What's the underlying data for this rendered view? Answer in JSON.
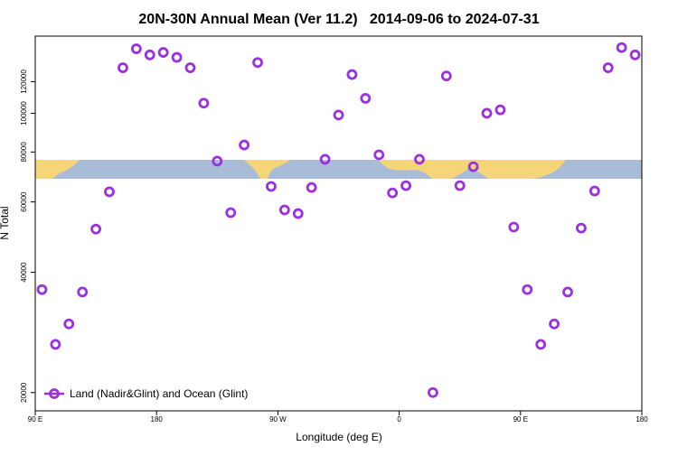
{
  "chart_data": {
    "type": "scatter",
    "title": "20N-30N Annual Mean (Ver 11.2)   2014-09-06 to 2024-07-31",
    "x_label": "Longitude (deg E)",
    "y_label": "N Total",
    "xlim": [
      90,
      540
    ],
    "ylim": [
      18000,
      156000
    ],
    "y_log": true,
    "xticks": [
      {
        "value": 90,
        "label": "90 E"
      },
      180,
      {
        "value": 270,
        "label": "90 W"
      },
      {
        "value": 360,
        "label": "0"
      },
      {
        "value": 450,
        "label": "90 E"
      },
      {
        "value": 540,
        "label": "180"
      }
    ],
    "yticks": [
      20000,
      40000,
      60000,
      80000,
      100000,
      120000
    ],
    "legend_position": "lower left",
    "x": [
      95,
      105,
      115,
      125,
      135,
      145,
      155,
      165,
      175,
      185,
      195,
      205,
      215,
      225,
      235,
      245,
      255,
      265,
      275,
      285,
      295,
      305,
      315,
      325,
      335,
      345,
      355,
      365,
      375,
      385,
      395,
      405,
      415,
      425,
      435,
      445,
      455,
      465,
      475,
      485,
      495,
      505,
      515,
      525,
      535
    ],
    "series": [
      {
        "name": "Land (Nadir&Glint) and Ocean (Glint)",
        "color": "#9b30e0",
        "values": [
          36200,
          26400,
          29700,
          35700,
          51300,
          63600,
          130000,
          145000,
          140000,
          142000,
          138000,
          130000,
          106000,
          75900,
          56400,
          83300,
          134000,
          65600,
          57300,
          56100,
          65200,
          76700,
          99000,
          125000,
          109000,
          78700,
          63200,
          65900,
          76700,
          20000,
          124000,
          65900,
          73500,
          100000,
          102000,
          51900,
          36200,
          26400,
          29700,
          35700,
          51600,
          63900,
          130000,
          146000,
          140000
        ]
      }
    ]
  }
}
